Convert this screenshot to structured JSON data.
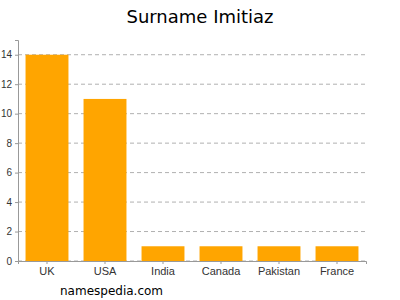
{
  "chart_data": {
    "type": "bar",
    "title": "Surname Imitiaz",
    "categories": [
      "UK",
      "USA",
      "India",
      "Canada",
      "Pakistan",
      "France"
    ],
    "values": [
      14,
      11,
      1,
      1,
      1,
      1
    ],
    "color": "#ffa500",
    "ylim": [
      0,
      15
    ],
    "yticks": [
      0,
      2,
      4,
      6,
      8,
      10,
      12,
      14
    ],
    "grid": true,
    "annotations": [
      "namespedia.com"
    ]
  }
}
